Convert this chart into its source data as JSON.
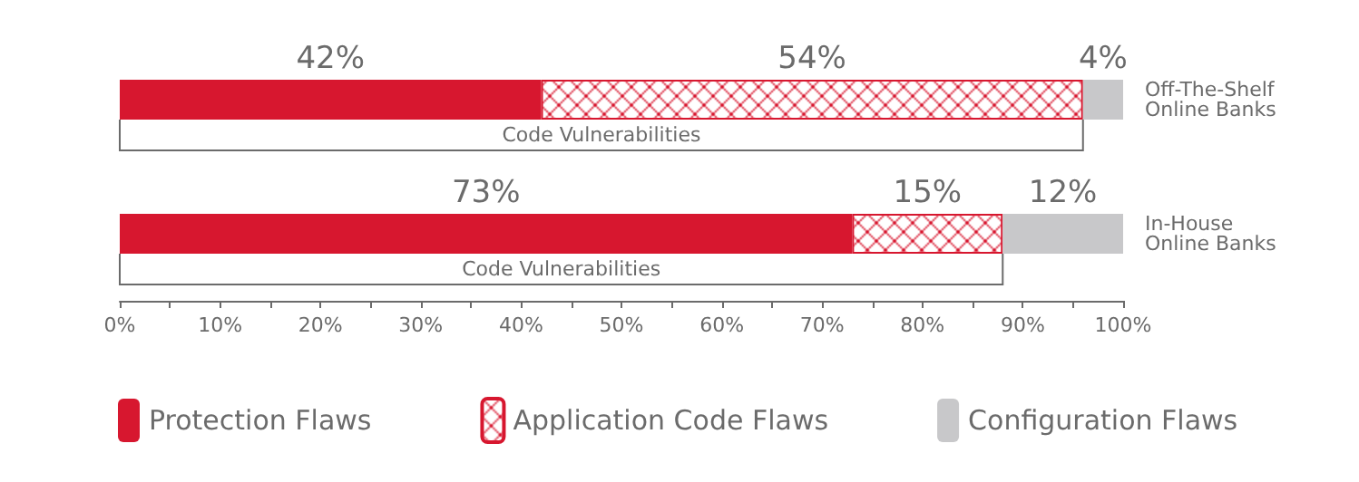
{
  "chart_data": {
    "type": "bar",
    "orientation": "horizontal",
    "stacked": true,
    "categories": [
      "Off-The-Shelf Online Banks",
      "In-House Online Banks"
    ],
    "series": [
      {
        "name": "Protection Flaws",
        "color": "#d7172f",
        "values": [
          42,
          73
        ],
        "value_labels": [
          "42%",
          "73%"
        ]
      },
      {
        "name": "Application Code Flaws",
        "color": "#d7172f",
        "values": [
          54,
          15
        ],
        "value_labels": [
          "54%",
          "15%"
        ]
      },
      {
        "name": "Configuration Flaws",
        "color": "#c8c8ca",
        "values": [
          4,
          12
        ],
        "value_labels": [
          "4%",
          "12%"
        ]
      }
    ],
    "xlim": [
      0,
      100
    ],
    "xticks": [
      {
        "value": 0,
        "label": "0%"
      },
      {
        "value": 5,
        "label": null
      },
      {
        "value": 10,
        "label": "10%"
      },
      {
        "value": 15,
        "label": null
      },
      {
        "value": 20,
        "label": "20%"
      },
      {
        "value": 25,
        "label": null
      },
      {
        "value": 30,
        "label": "30%"
      },
      {
        "value": 35,
        "label": null
      },
      {
        "value": 40,
        "label": "40%"
      },
      {
        "value": 45,
        "label": null
      },
      {
        "value": 50,
        "label": "50%"
      },
      {
        "value": 55,
        "label": null
      },
      {
        "value": 60,
        "label": "60%"
      },
      {
        "value": 65,
        "label": null
      },
      {
        "value": 70,
        "label": "70%"
      },
      {
        "value": 75,
        "label": null
      },
      {
        "value": 80,
        "label": "80%"
      },
      {
        "value": 85,
        "label": null
      },
      {
        "value": 90,
        "label": "90%"
      },
      {
        "value": 95,
        "label": null
      },
      {
        "value": 100,
        "label": "100%"
      }
    ],
    "annotations": [
      "Code Vulnerabilities",
      "Code Vulnerabilities"
    ],
    "grid": false,
    "legend": "bottom"
  }
}
